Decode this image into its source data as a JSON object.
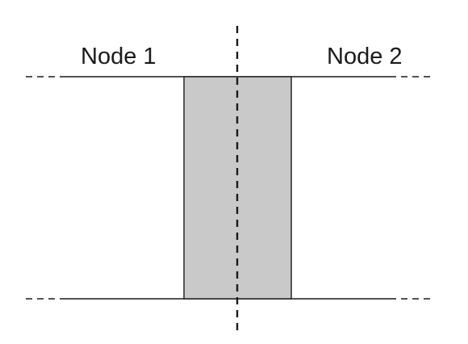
{
  "labels": {
    "node_left": "Node 1",
    "node_right": "Node 2"
  },
  "colors": {
    "line": "#1a1a1a",
    "block_fill": "#c9c9c9",
    "block_stroke": "#1a1a1a",
    "background": "#ffffff"
  }
}
